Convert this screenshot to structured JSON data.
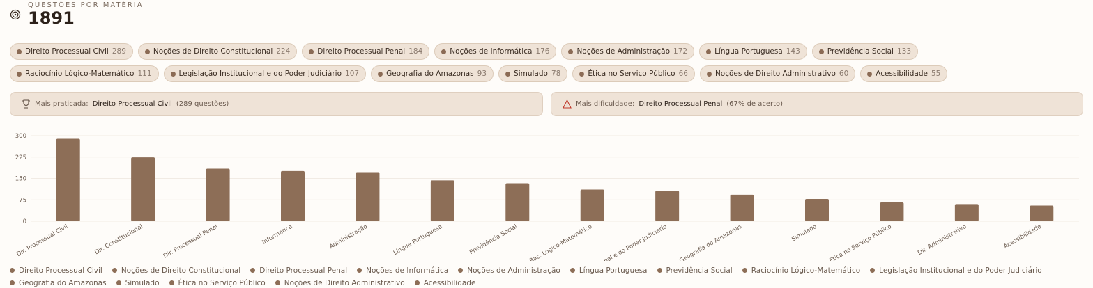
{
  "header": {
    "label": "QUESTÕES POR MATÉRIA",
    "total": "1891"
  },
  "chips": [
    {
      "name": "Direito Processual Civil",
      "count": 289
    },
    {
      "name": "Noções de Direito Constitucional",
      "count": 224
    },
    {
      "name": "Direito Processual Penal",
      "count": 184
    },
    {
      "name": "Noções de Informática",
      "count": 176
    },
    {
      "name": "Noções de Administração",
      "count": 172
    },
    {
      "name": "Língua Portuguesa",
      "count": 143
    },
    {
      "name": "Previdência Social",
      "count": 133
    },
    {
      "name": "Raciocínio Lógico-Matemático",
      "count": 111
    },
    {
      "name": "Legislação Institucional e do Poder Judiciário",
      "count": 107
    },
    {
      "name": "Geografia do Amazonas",
      "count": 93
    },
    {
      "name": "Simulado",
      "count": 78
    },
    {
      "name": "Ética no Serviço Público",
      "count": 66
    },
    {
      "name": "Noções de Direito Administrativo",
      "count": 60
    },
    {
      "name": "Acessibilidade",
      "count": 55
    }
  ],
  "cards": [
    {
      "label": "Mais praticada:",
      "subject": "Direito Processual Civil",
      "detail": "(289 questões)"
    },
    {
      "label": "Mais dificuldade:",
      "subject": "Direito Processual Penal",
      "detail": "(67% de acerto)"
    }
  ],
  "chart_data": {
    "type": "bar",
    "color": "#8d6e57",
    "grid": true,
    "categories": [
      "Dir. Processual Civil",
      "Dir. Constitucional",
      "Dir. Processual Penal",
      "Informática",
      "Administração",
      "Língua Portuguesa",
      "Previdência Social",
      "Rac. Lógico-Matemático",
      "Leg. Institucional e do Poder Judiciário",
      "Geografia do Amazonas",
      "Simulado",
      "Ética no Serviço Público",
      "Dir. Administrativo",
      "Acessibilidade"
    ],
    "values": [
      289,
      224,
      184,
      176,
      172,
      143,
      133,
      111,
      107,
      93,
      78,
      66,
      60,
      55
    ],
    "ylim": [
      0,
      300
    ],
    "yticks": [
      0,
      75,
      150,
      225,
      300
    ],
    "legend": [
      "Direito Processual Civil",
      "Noções de Direito Constitucional",
      "Direito Processual Penal",
      "Noções de Informática",
      "Noções de Administração",
      "Língua Portuguesa",
      "Previdência Social",
      "Raciocínio Lógico-Matemático",
      "Legislação Institucional e do Poder Judiciário",
      "Geografia do Amazonas",
      "Simulado",
      "Ética no Serviço Público",
      "Noções de Direito Administrativo",
      "Acessibilidade"
    ]
  }
}
